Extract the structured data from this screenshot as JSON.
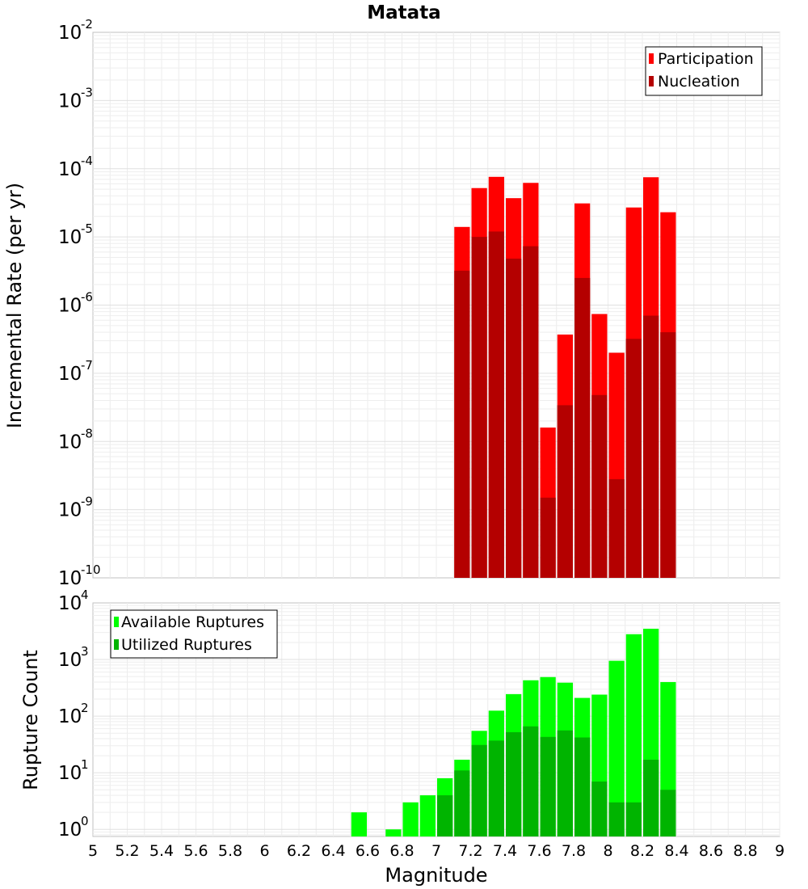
{
  "chart_data": [
    {
      "type": "bar",
      "title": "Matata",
      "xlabel": "Magnitude",
      "ylabel": "Incremental Rate (per yr)",
      "yscale": "log",
      "ylim": [
        1e-10,
        0.01
      ],
      "xlim": [
        5,
        9
      ],
      "y_ticks": [
        {
          "base": "10",
          "exp": "-2",
          "value": 0.01
        },
        {
          "base": "10",
          "exp": "-3",
          "value": 0.001
        },
        {
          "base": "10",
          "exp": "-4",
          "value": 0.0001
        },
        {
          "base": "10",
          "exp": "-5",
          "value": 1e-05
        },
        {
          "base": "10",
          "exp": "-6",
          "value": 1e-06
        },
        {
          "base": "10",
          "exp": "-7",
          "value": 1e-07
        },
        {
          "base": "10",
          "exp": "-8",
          "value": 1e-08
        },
        {
          "base": "10",
          "exp": "-9",
          "value": 1e-09
        },
        {
          "base": "10",
          "exp": "-10",
          "value": 1e-10
        }
      ],
      "x": [
        7.15,
        7.25,
        7.35,
        7.45,
        7.55,
        7.65,
        7.75,
        7.85,
        7.95,
        8.05,
        8.15,
        8.25,
        8.35
      ],
      "series": [
        {
          "name": "Participation",
          "color": "#ff0000",
          "values": [
            1.4e-05,
            5.2e-05,
            7.6e-05,
            3.7e-05,
            6.2e-05,
            1.6e-08,
            3.7e-07,
            3.1e-05,
            7.4e-07,
            2e-07,
            2.7e-05,
            7.5e-05,
            2.3e-05
          ]
        },
        {
          "name": "Nucleation",
          "color": "#b40000",
          "values": [
            3.2e-06,
            1e-05,
            1.2e-05,
            4.8e-06,
            7.3e-06,
            1.5e-09,
            3.4e-08,
            2.5e-06,
            4.8e-08,
            2.8e-09,
            3.2e-07,
            7e-07,
            4e-07
          ]
        }
      ],
      "legend_position": "top-right"
    },
    {
      "type": "bar",
      "xlabel": "Magnitude",
      "ylabel": "Rupture Count",
      "yscale": "log",
      "ylim": [
        0.75,
        10000
      ],
      "xlim": [
        5,
        9
      ],
      "y_ticks": [
        {
          "base": "10",
          "exp": "4",
          "value": 10000
        },
        {
          "base": "10",
          "exp": "3",
          "value": 1000
        },
        {
          "base": "10",
          "exp": "2",
          "value": 100
        },
        {
          "base": "10",
          "exp": "1",
          "value": 10
        },
        {
          "base": "10",
          "exp": "0",
          "value": 1
        }
      ],
      "x_ticks": [
        "5",
        "5.2",
        "5.4",
        "5.6",
        "5.8",
        "6",
        "6.2",
        "6.4",
        "6.6",
        "6.8",
        "7",
        "7.2",
        "7.4",
        "7.6",
        "7.8",
        "8",
        "8.2",
        "8.4",
        "8.6",
        "8.8",
        "9"
      ],
      "x": [
        6.55,
        6.75,
        6.85,
        6.95,
        7.05,
        7.15,
        7.25,
        7.35,
        7.45,
        7.55,
        7.65,
        7.75,
        7.85,
        7.95,
        8.05,
        8.15,
        8.25,
        8.35
      ],
      "series": [
        {
          "name": "Available Ruptures",
          "color": "#00ff00",
          "values": [
            2,
            1,
            3,
            4,
            8,
            17,
            55,
            125,
            245,
            430,
            490,
            390,
            210,
            240,
            950,
            2800,
            3500,
            400
          ]
        },
        {
          "name": "Utilized Ruptures",
          "color": "#00b400",
          "values": [
            0,
            0,
            0,
            0,
            4,
            11,
            31,
            37,
            52,
            66,
            43,
            56,
            42,
            7,
            3,
            3,
            17,
            5
          ]
        }
      ],
      "legend_position": "top-left"
    }
  ]
}
